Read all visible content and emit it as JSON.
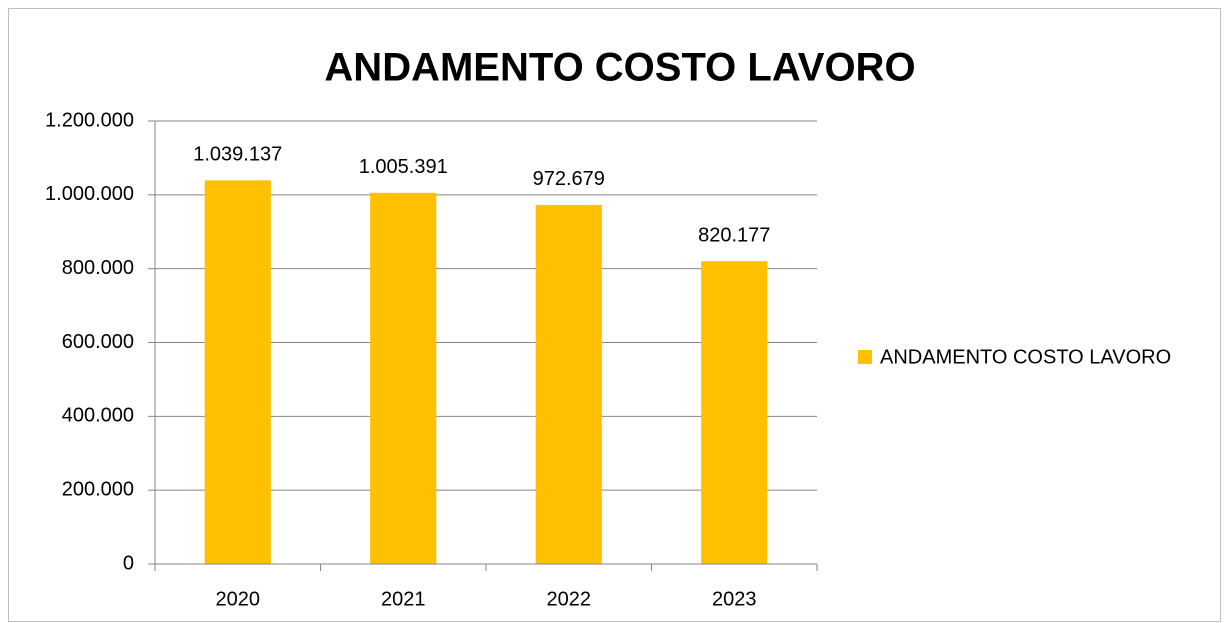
{
  "chart_data": {
    "type": "bar",
    "title": "ANDAMENTO COSTO LAVORO",
    "categories": [
      "2020",
      "2021",
      "2022",
      "2023"
    ],
    "series": [
      {
        "name": "ANDAMENTO COSTO LAVORO",
        "color": "#ffc000",
        "values": [
          1039137,
          1005391,
          972679,
          820177
        ],
        "value_labels": [
          "1.039.137",
          "1.005.391",
          "972.679",
          "820.177"
        ]
      }
    ],
    "ylim": [
      0,
      1200000
    ],
    "yticks": [
      0,
      {
        "value": 200000,
        "label": "200.000"
      },
      {
        "value": 400000,
        "label": "400.000"
      },
      {
        "value": 600000,
        "label": "600.000"
      },
      {
        "value": 800000,
        "label": "800.000"
      },
      {
        "value": 1000000,
        "label": "1.000.000"
      },
      {
        "value": 1200000,
        "label": "1.200.000"
      }
    ],
    "grid": true,
    "legend": "right"
  }
}
